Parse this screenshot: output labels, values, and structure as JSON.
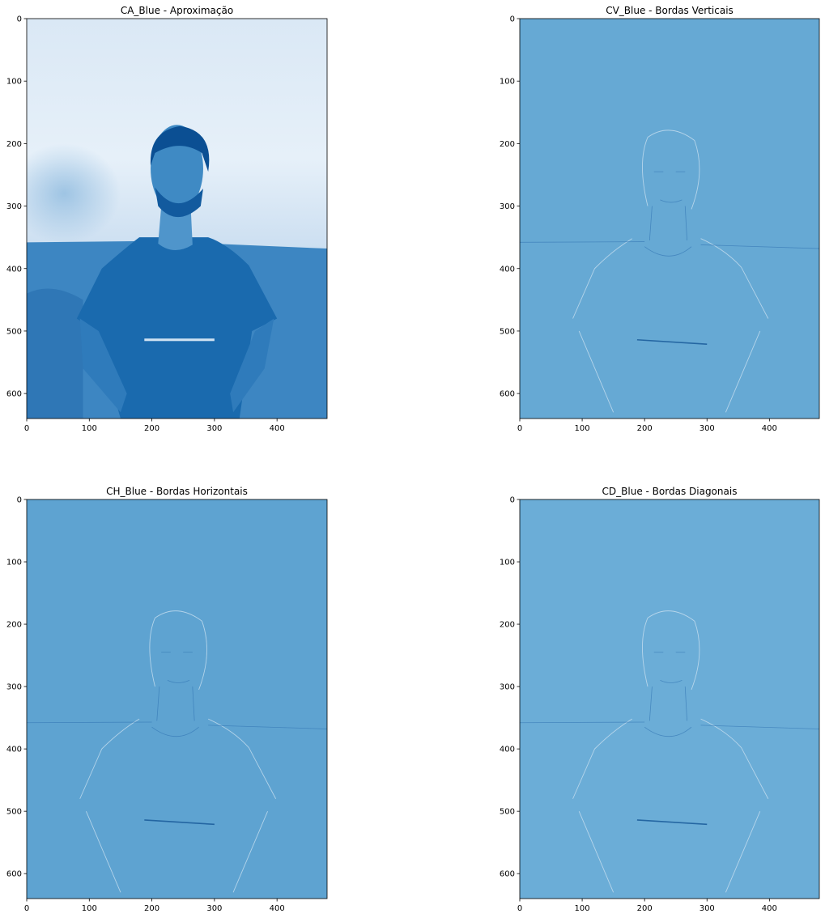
{
  "chart_data": [
    {
      "type": "heatmap",
      "title": "CA_Blue - Aproximação",
      "colormap": "Blues",
      "image_extent": {
        "x": [
          0,
          480
        ],
        "y": [
          640,
          0
        ]
      },
      "xlim": [
        0,
        480
      ],
      "ylim": [
        640,
        0
      ],
      "xticks": [
        0,
        100,
        200,
        300,
        400
      ],
      "yticks": [
        0,
        100,
        200,
        300,
        400,
        500,
        600
      ],
      "background_color": "#0f63ad",
      "texture": "approximation"
    },
    {
      "type": "heatmap",
      "title": "CV_Blue - Bordas Verticais",
      "colormap": "Blues",
      "image_extent": {
        "x": [
          0,
          480
        ],
        "y": [
          640,
          0
        ]
      },
      "xlim": [
        0,
        480
      ],
      "ylim": [
        640,
        0
      ],
      "xticks": [
        0,
        100,
        200,
        300,
        400
      ],
      "yticks": [
        0,
        100,
        200,
        300,
        400,
        500,
        600
      ],
      "background_color": "#66a9d4",
      "texture": "edges"
    },
    {
      "type": "heatmap",
      "title": "CH_Blue - Bordas Horizontais",
      "colormap": "Blues",
      "image_extent": {
        "x": [
          0,
          480
        ],
        "y": [
          640,
          0
        ]
      },
      "xlim": [
        0,
        480
      ],
      "ylim": [
        640,
        0
      ],
      "xticks": [
        0,
        100,
        200,
        300,
        400
      ],
      "yticks": [
        0,
        100,
        200,
        300,
        400,
        500,
        600
      ],
      "background_color": "#5ea3d1",
      "texture": "edges"
    },
    {
      "type": "heatmap",
      "title": "CD_Blue - Bordas Diagonais",
      "colormap": "Blues",
      "image_extent": {
        "x": [
          0,
          480
        ],
        "y": [
          640,
          0
        ]
      },
      "xlim": [
        0,
        480
      ],
      "ylim": [
        640,
        0
      ],
      "xticks": [
        0,
        100,
        200,
        300,
        400
      ],
      "yticks": [
        0,
        100,
        200,
        300,
        400,
        500,
        600
      ],
      "background_color": "#6badd7",
      "texture": "edges"
    }
  ]
}
